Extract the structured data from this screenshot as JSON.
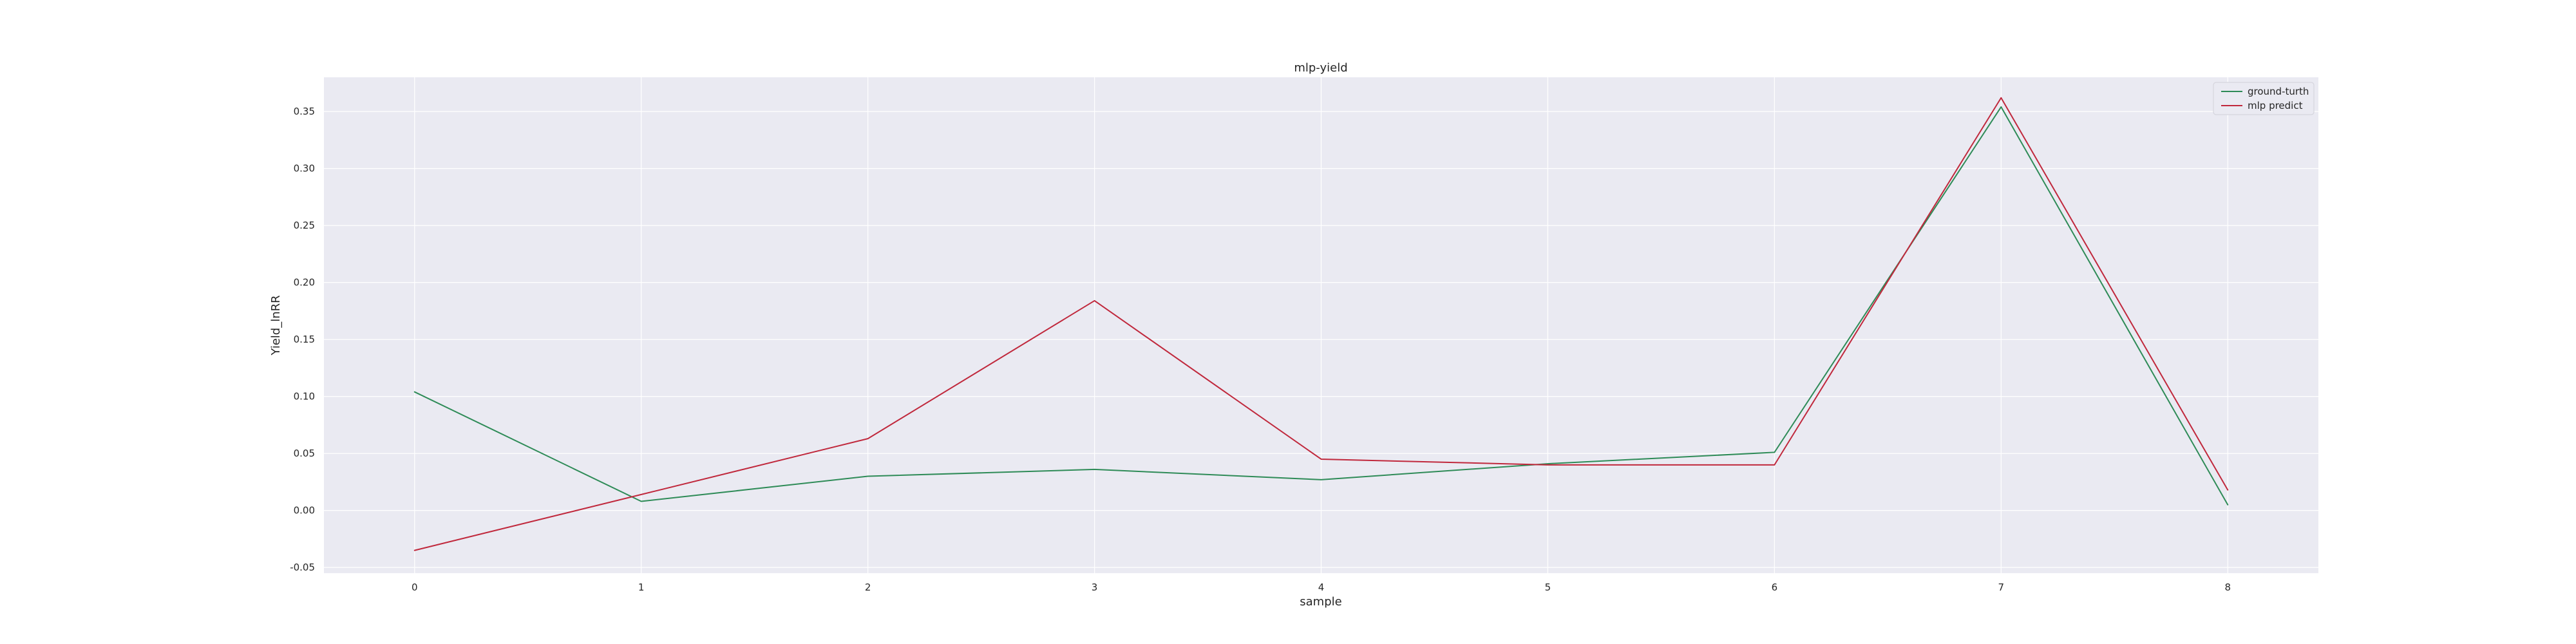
{
  "chart_data": {
    "type": "line",
    "title": "mlp-yield",
    "xlabel": "sample",
    "ylabel": "Yield_lnRR",
    "x": [
      0,
      1,
      2,
      3,
      4,
      5,
      6,
      7,
      8
    ],
    "xticks": [
      "0",
      "1",
      "2",
      "3",
      "4",
      "5",
      "6",
      "7",
      "8"
    ],
    "yticks": [
      "-0.05",
      "0.00",
      "0.05",
      "0.10",
      "0.15",
      "0.20",
      "0.25",
      "0.30",
      "0.35"
    ],
    "xlim": [
      -0.4,
      8.4
    ],
    "ylim": [
      -0.055,
      0.38
    ],
    "grid": true,
    "legend_position": "top-right",
    "series": [
      {
        "name": "ground-turth",
        "color": "#2e8b57",
        "values": [
          0.104,
          0.008,
          0.03,
          0.036,
          0.027,
          0.041,
          0.051,
          0.354,
          0.005
        ]
      },
      {
        "name": "mlp predict",
        "color": "#c0283c",
        "values": [
          -0.035,
          0.014,
          0.063,
          0.184,
          0.045,
          0.04,
          0.04,
          0.362,
          0.018
        ]
      }
    ]
  },
  "colors": {
    "plot_background": "#eaeaf2",
    "grid": "#ffffff",
    "text": "#262626"
  }
}
